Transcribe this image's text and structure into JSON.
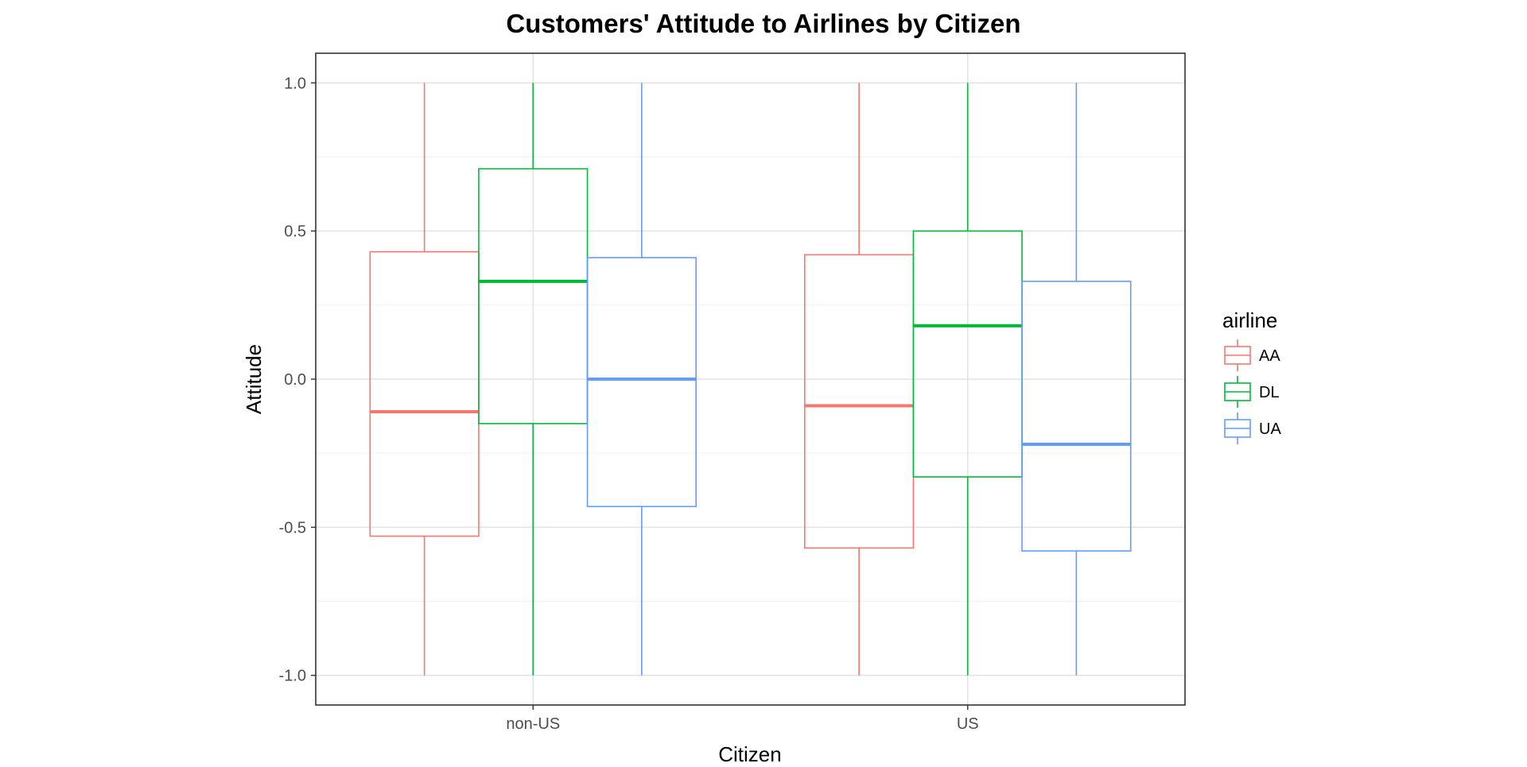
{
  "chart_data": {
    "type": "boxplot",
    "title": "Customers' Attitude to Airlines by Citizen",
    "xlabel": "Citizen",
    "ylabel": "Attitude",
    "categories": [
      "non-US",
      "US"
    ],
    "ylim": [
      -1.1,
      1.1
    ],
    "yticks": [
      -1.0,
      -0.5,
      0.0,
      0.5,
      1.0
    ],
    "ytick_labels": [
      "-1.0",
      "-0.5",
      "0.0",
      "0.5",
      "1.0"
    ],
    "grid": true,
    "legend": {
      "title": "airline",
      "position": "right"
    },
    "series": [
      {
        "name": "AA",
        "color": "#F8766D",
        "boxes": [
          {
            "category": "non-US",
            "min": -1.0,
            "q1": -0.53,
            "median": -0.11,
            "q3": 0.43,
            "max": 1.0
          },
          {
            "category": "US",
            "min": -1.0,
            "q1": -0.57,
            "median": -0.09,
            "q3": 0.42,
            "max": 1.0
          }
        ]
      },
      {
        "name": "DL",
        "color": "#00BA38",
        "boxes": [
          {
            "category": "non-US",
            "min": -1.0,
            "q1": -0.15,
            "median": 0.33,
            "q3": 0.71,
            "max": 1.0
          },
          {
            "category": "US",
            "min": -1.0,
            "q1": -0.33,
            "median": 0.18,
            "q3": 0.5,
            "max": 1.0
          }
        ]
      },
      {
        "name": "UA",
        "color": "#619CFF",
        "boxes": [
          {
            "category": "non-US",
            "min": -1.0,
            "q1": -0.43,
            "median": 0.0,
            "q3": 0.41,
            "max": 1.0
          },
          {
            "category": "US",
            "min": -1.0,
            "q1": -0.58,
            "median": -0.22,
            "q3": 0.33,
            "max": 1.0
          }
        ]
      }
    ]
  }
}
